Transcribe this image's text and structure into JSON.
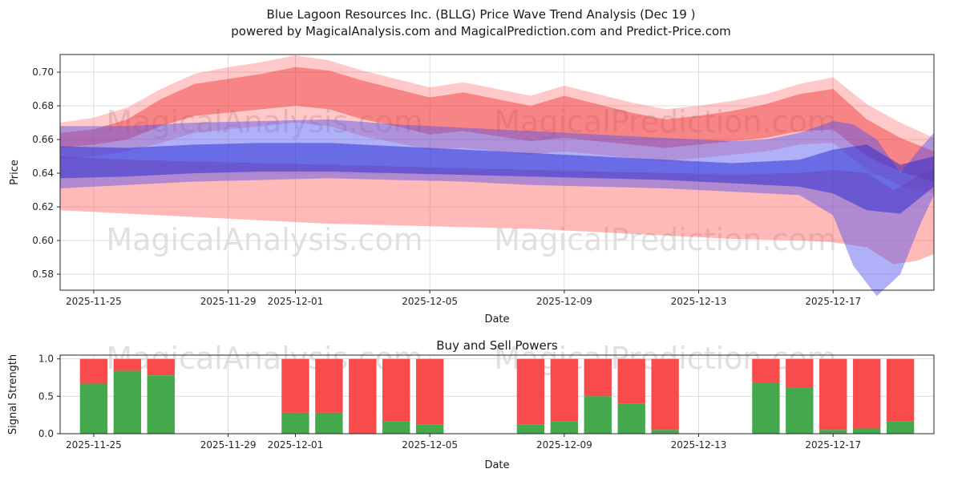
{
  "page_title": {
    "line1": "Blue Lagoon Resources Inc. (BLLG) Price Wave Trend Analysis (Dec 19 )",
    "line2": "powered by MagicalAnalysis.com and MagicalPrediction.com and Predict-Price.com"
  },
  "watermarks": {
    "left": "MagicalAnalysis.com",
    "right": "MagicalPrediction.com"
  },
  "colors": {
    "grid": "#dcdcdc",
    "axis": "#262626",
    "bar_green": "#44a94c",
    "bar_red": "#f94b4b",
    "band_pink": "rgba(255,80,80,0.40)",
    "band_red_outer": "rgba(255,60,60,0.28)",
    "band_red_inner": "rgba(235,40,40,0.42)",
    "band_blue_outer": "rgba(80,80,240,0.45)",
    "band_blue_inner": "rgba(35,40,210,0.50)"
  },
  "chart_data": [
    {
      "type": "area",
      "title": "Blue Lagoon Resources Inc. (BLLG) Price Wave Trend Analysis (Dec 19 ) powered by MagicalAnalysis.com and MagicalPrediction.com and Predict-Price.com",
      "xlabel": "Date",
      "ylabel": "Price",
      "ylim": [
        0.5705,
        0.7105
      ],
      "yticks": [
        0.58,
        0.6,
        0.62,
        0.64,
        0.66,
        0.68,
        0.7
      ],
      "ytick_labels": [
        "0.58",
        "0.60",
        "0.62",
        "0.64",
        "0.66",
        "0.68",
        "0.70"
      ],
      "x_domain_days": [
        0,
        26
      ],
      "xticks": [
        {
          "day": 1,
          "label": "2025-11-25"
        },
        {
          "day": 5,
          "label": "2025-11-29"
        },
        {
          "day": 7,
          "label": "2025-12-01"
        },
        {
          "day": 11,
          "label": "2025-12-05"
        },
        {
          "day": 15,
          "label": "2025-12-09"
        },
        {
          "day": 19,
          "label": "2025-12-13"
        },
        {
          "day": 23,
          "label": "2025-12-17"
        }
      ],
      "bands": [
        {
          "name": "band-pink-wide",
          "color_key": "band_pink",
          "days": [
            0,
            2,
            4,
            6,
            8,
            10,
            12,
            14,
            16,
            18,
            20,
            22,
            23,
            24,
            24.8,
            25.5,
            26
          ],
          "upper": [
            0.65,
            0.648,
            0.647,
            0.646,
            0.645,
            0.644,
            0.643,
            0.642,
            0.641,
            0.64,
            0.639,
            0.64,
            0.642,
            0.64,
            0.63,
            0.638,
            0.642
          ],
          "lower": [
            0.618,
            0.616,
            0.614,
            0.612,
            0.61,
            0.609,
            0.608,
            0.607,
            0.605,
            0.603,
            0.601,
            0.6,
            0.599,
            0.596,
            0.586,
            0.588,
            0.592
          ]
        },
        {
          "name": "band-red-outer",
          "color_key": "band_red_outer",
          "days": [
            0,
            1,
            2,
            3,
            4,
            5,
            6,
            7,
            8,
            9,
            10,
            11,
            12,
            13,
            14,
            15,
            16,
            17,
            18,
            19,
            20,
            21,
            22,
            23,
            24,
            25,
            26
          ],
          "upper": [
            0.67,
            0.673,
            0.679,
            0.69,
            0.699,
            0.703,
            0.706,
            0.71,
            0.707,
            0.701,
            0.696,
            0.691,
            0.694,
            0.69,
            0.686,
            0.692,
            0.687,
            0.682,
            0.678,
            0.68,
            0.683,
            0.687,
            0.693,
            0.697,
            0.681,
            0.67,
            0.661
          ],
          "lower": [
            0.648,
            0.65,
            0.653,
            0.658,
            0.664,
            0.666,
            0.668,
            0.67,
            0.668,
            0.662,
            0.658,
            0.654,
            0.655,
            0.653,
            0.651,
            0.653,
            0.651,
            0.649,
            0.647,
            0.649,
            0.651,
            0.653,
            0.657,
            0.658,
            0.642,
            0.633,
            0.628
          ]
        },
        {
          "name": "band-red-inner",
          "color_key": "band_red_inner",
          "days": [
            0,
            1,
            2,
            3,
            4,
            5,
            6,
            7,
            8,
            9,
            10,
            11,
            12,
            13,
            14,
            15,
            16,
            17,
            18,
            19,
            20,
            21,
            22,
            23,
            24,
            25,
            26
          ],
          "upper": [
            0.664,
            0.666,
            0.672,
            0.684,
            0.693,
            0.696,
            0.699,
            0.703,
            0.701,
            0.695,
            0.69,
            0.685,
            0.688,
            0.684,
            0.68,
            0.686,
            0.681,
            0.676,
            0.672,
            0.674,
            0.677,
            0.681,
            0.687,
            0.69,
            0.672,
            0.661,
            0.653
          ],
          "lower": [
            0.655,
            0.657,
            0.66,
            0.668,
            0.674,
            0.676,
            0.678,
            0.68,
            0.678,
            0.672,
            0.668,
            0.663,
            0.665,
            0.662,
            0.659,
            0.661,
            0.659,
            0.657,
            0.655,
            0.657,
            0.659,
            0.661,
            0.665,
            0.666,
            0.65,
            0.641,
            0.635
          ]
        },
        {
          "name": "band-blue-outer",
          "color_key": "band_blue_outer",
          "days": [
            0,
            2,
            4,
            6,
            8,
            10,
            12,
            14,
            16,
            18,
            20,
            21,
            22,
            23,
            23.6,
            24.3,
            25,
            25.6,
            26
          ],
          "upper": [
            0.668,
            0.668,
            0.67,
            0.671,
            0.672,
            0.669,
            0.667,
            0.665,
            0.663,
            0.661,
            0.659,
            0.66,
            0.664,
            0.671,
            0.669,
            0.66,
            0.64,
            0.655,
            0.664
          ],
          "lower": [
            0.631,
            0.633,
            0.635,
            0.636,
            0.637,
            0.636,
            0.635,
            0.633,
            0.632,
            0.631,
            0.629,
            0.628,
            0.627,
            0.615,
            0.585,
            0.567,
            0.58,
            0.61,
            0.627
          ]
        },
        {
          "name": "band-blue-inner",
          "color_key": "band_blue_inner",
          "days": [
            0,
            2,
            4,
            6,
            8,
            10,
            12,
            14,
            16,
            18,
            20,
            22,
            23,
            24,
            25,
            26
          ],
          "upper": [
            0.656,
            0.655,
            0.657,
            0.658,
            0.658,
            0.656,
            0.654,
            0.652,
            0.65,
            0.648,
            0.646,
            0.648,
            0.654,
            0.657,
            0.645,
            0.65
          ],
          "lower": [
            0.637,
            0.638,
            0.64,
            0.641,
            0.641,
            0.64,
            0.639,
            0.638,
            0.637,
            0.636,
            0.634,
            0.632,
            0.628,
            0.618,
            0.616,
            0.632
          ]
        }
      ]
    },
    {
      "type": "bar",
      "title": "Buy and Sell Powers",
      "xlabel": "Date",
      "ylabel": "Signal Strength",
      "ylim": [
        0,
        1.05
      ],
      "yticks": [
        0.0,
        0.5,
        1.0
      ],
      "ytick_labels": [
        "0.0",
        "0.5",
        "1.0"
      ],
      "x_domain_days": [
        0,
        26
      ],
      "xticks": [
        {
          "day": 1,
          "label": "2025-11-25"
        },
        {
          "day": 5,
          "label": "2025-11-29"
        },
        {
          "day": 7,
          "label": "2025-12-01"
        },
        {
          "day": 11,
          "label": "2025-12-05"
        },
        {
          "day": 15,
          "label": "2025-12-09"
        },
        {
          "day": 19,
          "label": "2025-12-13"
        },
        {
          "day": 23,
          "label": "2025-12-17"
        }
      ],
      "stack_total": 1.0,
      "series_names": [
        "Buy (green)",
        "Sell (red)"
      ],
      "bars": [
        {
          "day": 1,
          "date": "2025-11-25",
          "buy": 0.67,
          "sell": 0.33
        },
        {
          "day": 2,
          "date": "2025-11-26",
          "buy": 0.84,
          "sell": 0.16
        },
        {
          "day": 3,
          "date": "2025-11-27",
          "buy": 0.78,
          "sell": 0.22
        },
        {
          "day": 7,
          "date": "2025-12-01",
          "buy": 0.28,
          "sell": 0.72
        },
        {
          "day": 8,
          "date": "2025-12-02",
          "buy": 0.28,
          "sell": 0.72
        },
        {
          "day": 9,
          "date": "2025-12-03",
          "buy": 0.0,
          "sell": 1.0
        },
        {
          "day": 10,
          "date": "2025-12-04",
          "buy": 0.17,
          "sell": 0.83
        },
        {
          "day": 11,
          "date": "2025-12-05",
          "buy": 0.12,
          "sell": 0.88
        },
        {
          "day": 14,
          "date": "2025-12-08",
          "buy": 0.12,
          "sell": 0.88
        },
        {
          "day": 15,
          "date": "2025-12-09",
          "buy": 0.17,
          "sell": 0.83
        },
        {
          "day": 16,
          "date": "2025-12-10",
          "buy": 0.5,
          "sell": 0.5
        },
        {
          "day": 17,
          "date": "2025-12-11",
          "buy": 0.4,
          "sell": 0.6
        },
        {
          "day": 18,
          "date": "2025-12-12",
          "buy": 0.05,
          "sell": 0.95
        },
        {
          "day": 21,
          "date": "2025-12-15",
          "buy": 0.68,
          "sell": 0.32
        },
        {
          "day": 22,
          "date": "2025-12-16",
          "buy": 0.61,
          "sell": 0.39
        },
        {
          "day": 23,
          "date": "2025-12-17",
          "buy": 0.05,
          "sell": 0.95
        },
        {
          "day": 24,
          "date": "2025-12-18",
          "buy": 0.07,
          "sell": 0.93
        },
        {
          "day": 25,
          "date": "2025-12-19",
          "buy": 0.17,
          "sell": 0.83
        }
      ]
    }
  ]
}
